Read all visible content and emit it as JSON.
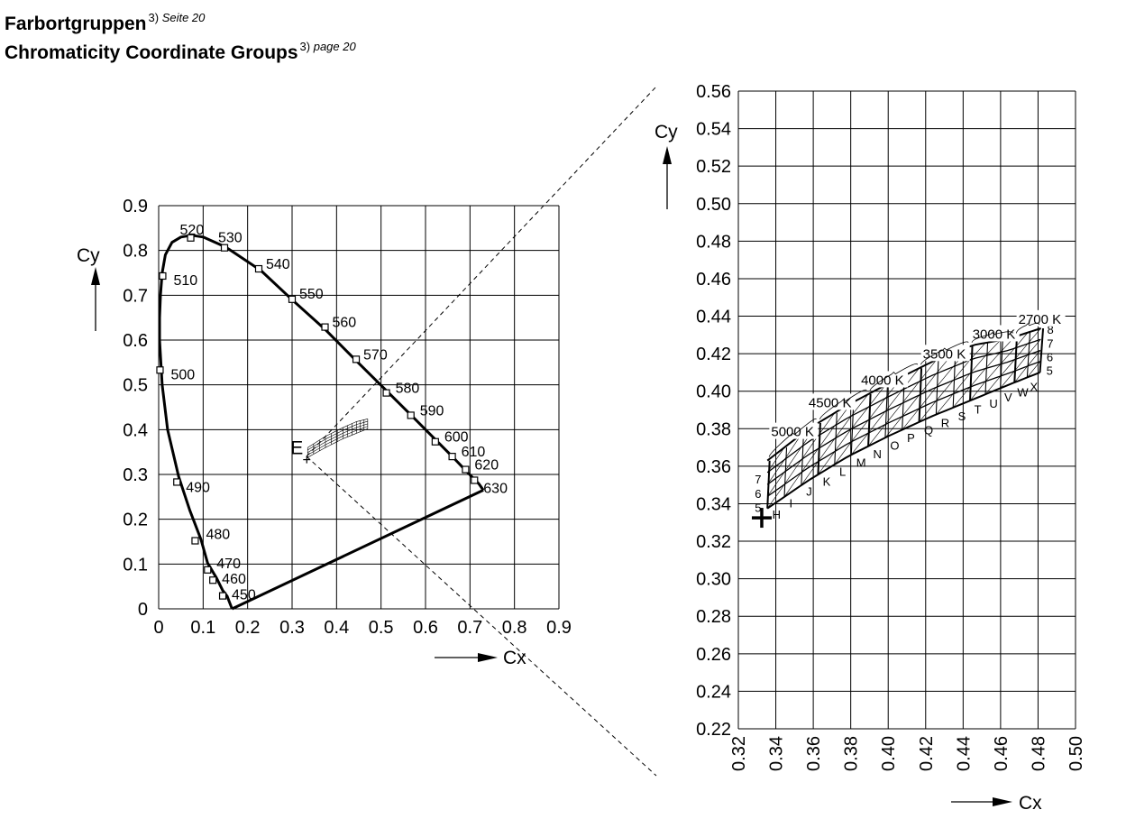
{
  "header": {
    "title_de": "Farbortgruppen",
    "title_de_note": "3)",
    "title_de_ref": "Seite 20",
    "title_en": "Chromaticity Coordinate Groups",
    "title_en_note": "3)",
    "title_en_ref": "page 20"
  },
  "chart_data": [
    {
      "type": "line",
      "xlabel": "Cx",
      "ylabel": "Cy",
      "xlim": [
        0,
        0.9
      ],
      "ylim": [
        0,
        0.9
      ],
      "grid": true,
      "x_ticks": [
        "0",
        "0.1",
        "0.2",
        "0.3",
        "0.4",
        "0.5",
        "0.6",
        "0.7",
        "0.8",
        "0.9"
      ],
      "y_ticks": [
        "0",
        "0.1",
        "0.2",
        "0.3",
        "0.4",
        "0.5",
        "0.6",
        "0.7",
        "0.8",
        "0.9"
      ],
      "spectral_locus": {
        "x": [
          0.165,
          0.154,
          0.144,
          0.13,
          0.11,
          0.095,
          0.07,
          0.045,
          0.02,
          0.008,
          0.002,
          0.002,
          0.004,
          0.008,
          0.015,
          0.03,
          0.05,
          0.074,
          0.1,
          0.15,
          0.23,
          0.3,
          0.374,
          0.444,
          0.512,
          0.575,
          0.627,
          0.664,
          0.691,
          0.72,
          0.73
        ],
        "y": [
          0.0,
          0.028,
          0.041,
          0.069,
          0.102,
          0.155,
          0.22,
          0.295,
          0.4,
          0.5,
          0.6,
          0.65,
          0.7,
          0.75,
          0.79,
          0.818,
          0.83,
          0.834,
          0.83,
          0.808,
          0.755,
          0.69,
          0.624,
          0.554,
          0.487,
          0.425,
          0.373,
          0.336,
          0.308,
          0.279,
          0.265
        ]
      },
      "purple_line": {
        "x": [
          0.165,
          0.73
        ],
        "y": [
          0.0,
          0.265
        ]
      },
      "wavelength_markers": [
        {
          "label": "450",
          "x": 0.144,
          "y": 0.029
        },
        {
          "label": "460",
          "x": 0.122,
          "y": 0.064
        },
        {
          "label": "470",
          "x": 0.11,
          "y": 0.087
        },
        {
          "label": "480",
          "x": 0.082,
          "y": 0.152
        },
        {
          "label": "490",
          "x": 0.041,
          "y": 0.283
        },
        {
          "label": "500",
          "x": 0.003,
          "y": 0.533
        },
        {
          "label": "510",
          "x": 0.009,
          "y": 0.743
        },
        {
          "label": "520",
          "x": 0.072,
          "y": 0.828
        },
        {
          "label": "530",
          "x": 0.148,
          "y": 0.806
        },
        {
          "label": "540",
          "x": 0.225,
          "y": 0.759
        },
        {
          "label": "550",
          "x": 0.3,
          "y": 0.691
        },
        {
          "label": "560",
          "x": 0.374,
          "y": 0.629
        },
        {
          "label": "570",
          "x": 0.444,
          "y": 0.557
        },
        {
          "label": "580",
          "x": 0.512,
          "y": 0.482
        },
        {
          "label": "590",
          "x": 0.567,
          "y": 0.432
        },
        {
          "label": "600",
          "x": 0.622,
          "y": 0.373
        },
        {
          "label": "610",
          "x": 0.66,
          "y": 0.34
        },
        {
          "label": "620",
          "x": 0.69,
          "y": 0.311
        },
        {
          "label": "630",
          "x": 0.71,
          "y": 0.287
        }
      ],
      "white_point": {
        "label": "E",
        "x": 0.333,
        "y": 0.333
      },
      "groups_region": {
        "lower": {
          "x": [
            0.335,
            0.375,
            0.415,
            0.445,
            0.47
          ],
          "y": [
            0.338,
            0.36,
            0.38,
            0.392,
            0.402
          ]
        },
        "upper": {
          "x": [
            0.335,
            0.375,
            0.415,
            0.445,
            0.47
          ],
          "y": [
            0.36,
            0.385,
            0.405,
            0.418,
            0.424
          ]
        },
        "cols": 12,
        "rows": 4
      }
    },
    {
      "type": "line",
      "xlabel": "Cx",
      "ylabel": "Cy",
      "xlim": [
        0.32,
        0.5
      ],
      "ylim": [
        0.22,
        0.56
      ],
      "grid": true,
      "x_ticks": [
        "0.32",
        "0.34",
        "0.36",
        "0.38",
        "0.40",
        "0.42",
        "0.44",
        "0.46",
        "0.48",
        "0.50"
      ],
      "y_ticks": [
        "0.22",
        "0.24",
        "0.26",
        "0.28",
        "0.30",
        "0.32",
        "0.34",
        "0.36",
        "0.38",
        "0.40",
        "0.42",
        "0.44",
        "0.46",
        "0.48",
        "0.50",
        "0.52",
        "0.54",
        "0.56"
      ],
      "white_point": {
        "x": 0.3325,
        "y": 0.3325
      },
      "groups": [
        "H",
        "I",
        "J",
        "K",
        "L",
        "M",
        "N",
        "O",
        "P",
        "Q",
        "R",
        "S",
        "T",
        "U",
        "V",
        "W",
        "X"
      ],
      "sub_groups": [
        "5",
        "6",
        "7",
        "8"
      ],
      "cct_labels": [
        {
          "label": "5000 K",
          "x": 0.3375,
          "y": 0.376
        },
        {
          "label": "4500 K",
          "x": 0.3575,
          "y": 0.3915
        },
        {
          "label": "4000 K",
          "x": 0.3855,
          "y": 0.4035
        },
        {
          "label": "3500 K",
          "x": 0.4185,
          "y": 0.4175
        },
        {
          "label": "3000 K",
          "x": 0.445,
          "y": 0.428
        },
        {
          "label": "2700 K",
          "x": 0.4695,
          "y": 0.436
        }
      ],
      "grid_corners": {
        "bottom": {
          "x": [
            0.3355,
            0.3575,
            0.379,
            0.401,
            0.423,
            0.445,
            0.4645
          ],
          "y": [
            0.3375,
            0.3525,
            0.3655,
            0.3765,
            0.3865,
            0.3955,
            0.4035
          ]
        },
        "top": {
          "x": [
            0.3355,
            0.3575,
            0.379,
            0.401,
            0.423,
            0.445,
            0.4645,
            0.4815
          ],
          "y": [
            0.363,
            0.38,
            0.393,
            0.4045,
            0.4155,
            0.4245,
            0.428,
            0.4335
          ]
        },
        "right_edge": {
          "x": [
            0.4645,
            0.481
          ],
          "y": [
            0.4035,
            0.4335
          ]
        }
      }
    }
  ]
}
